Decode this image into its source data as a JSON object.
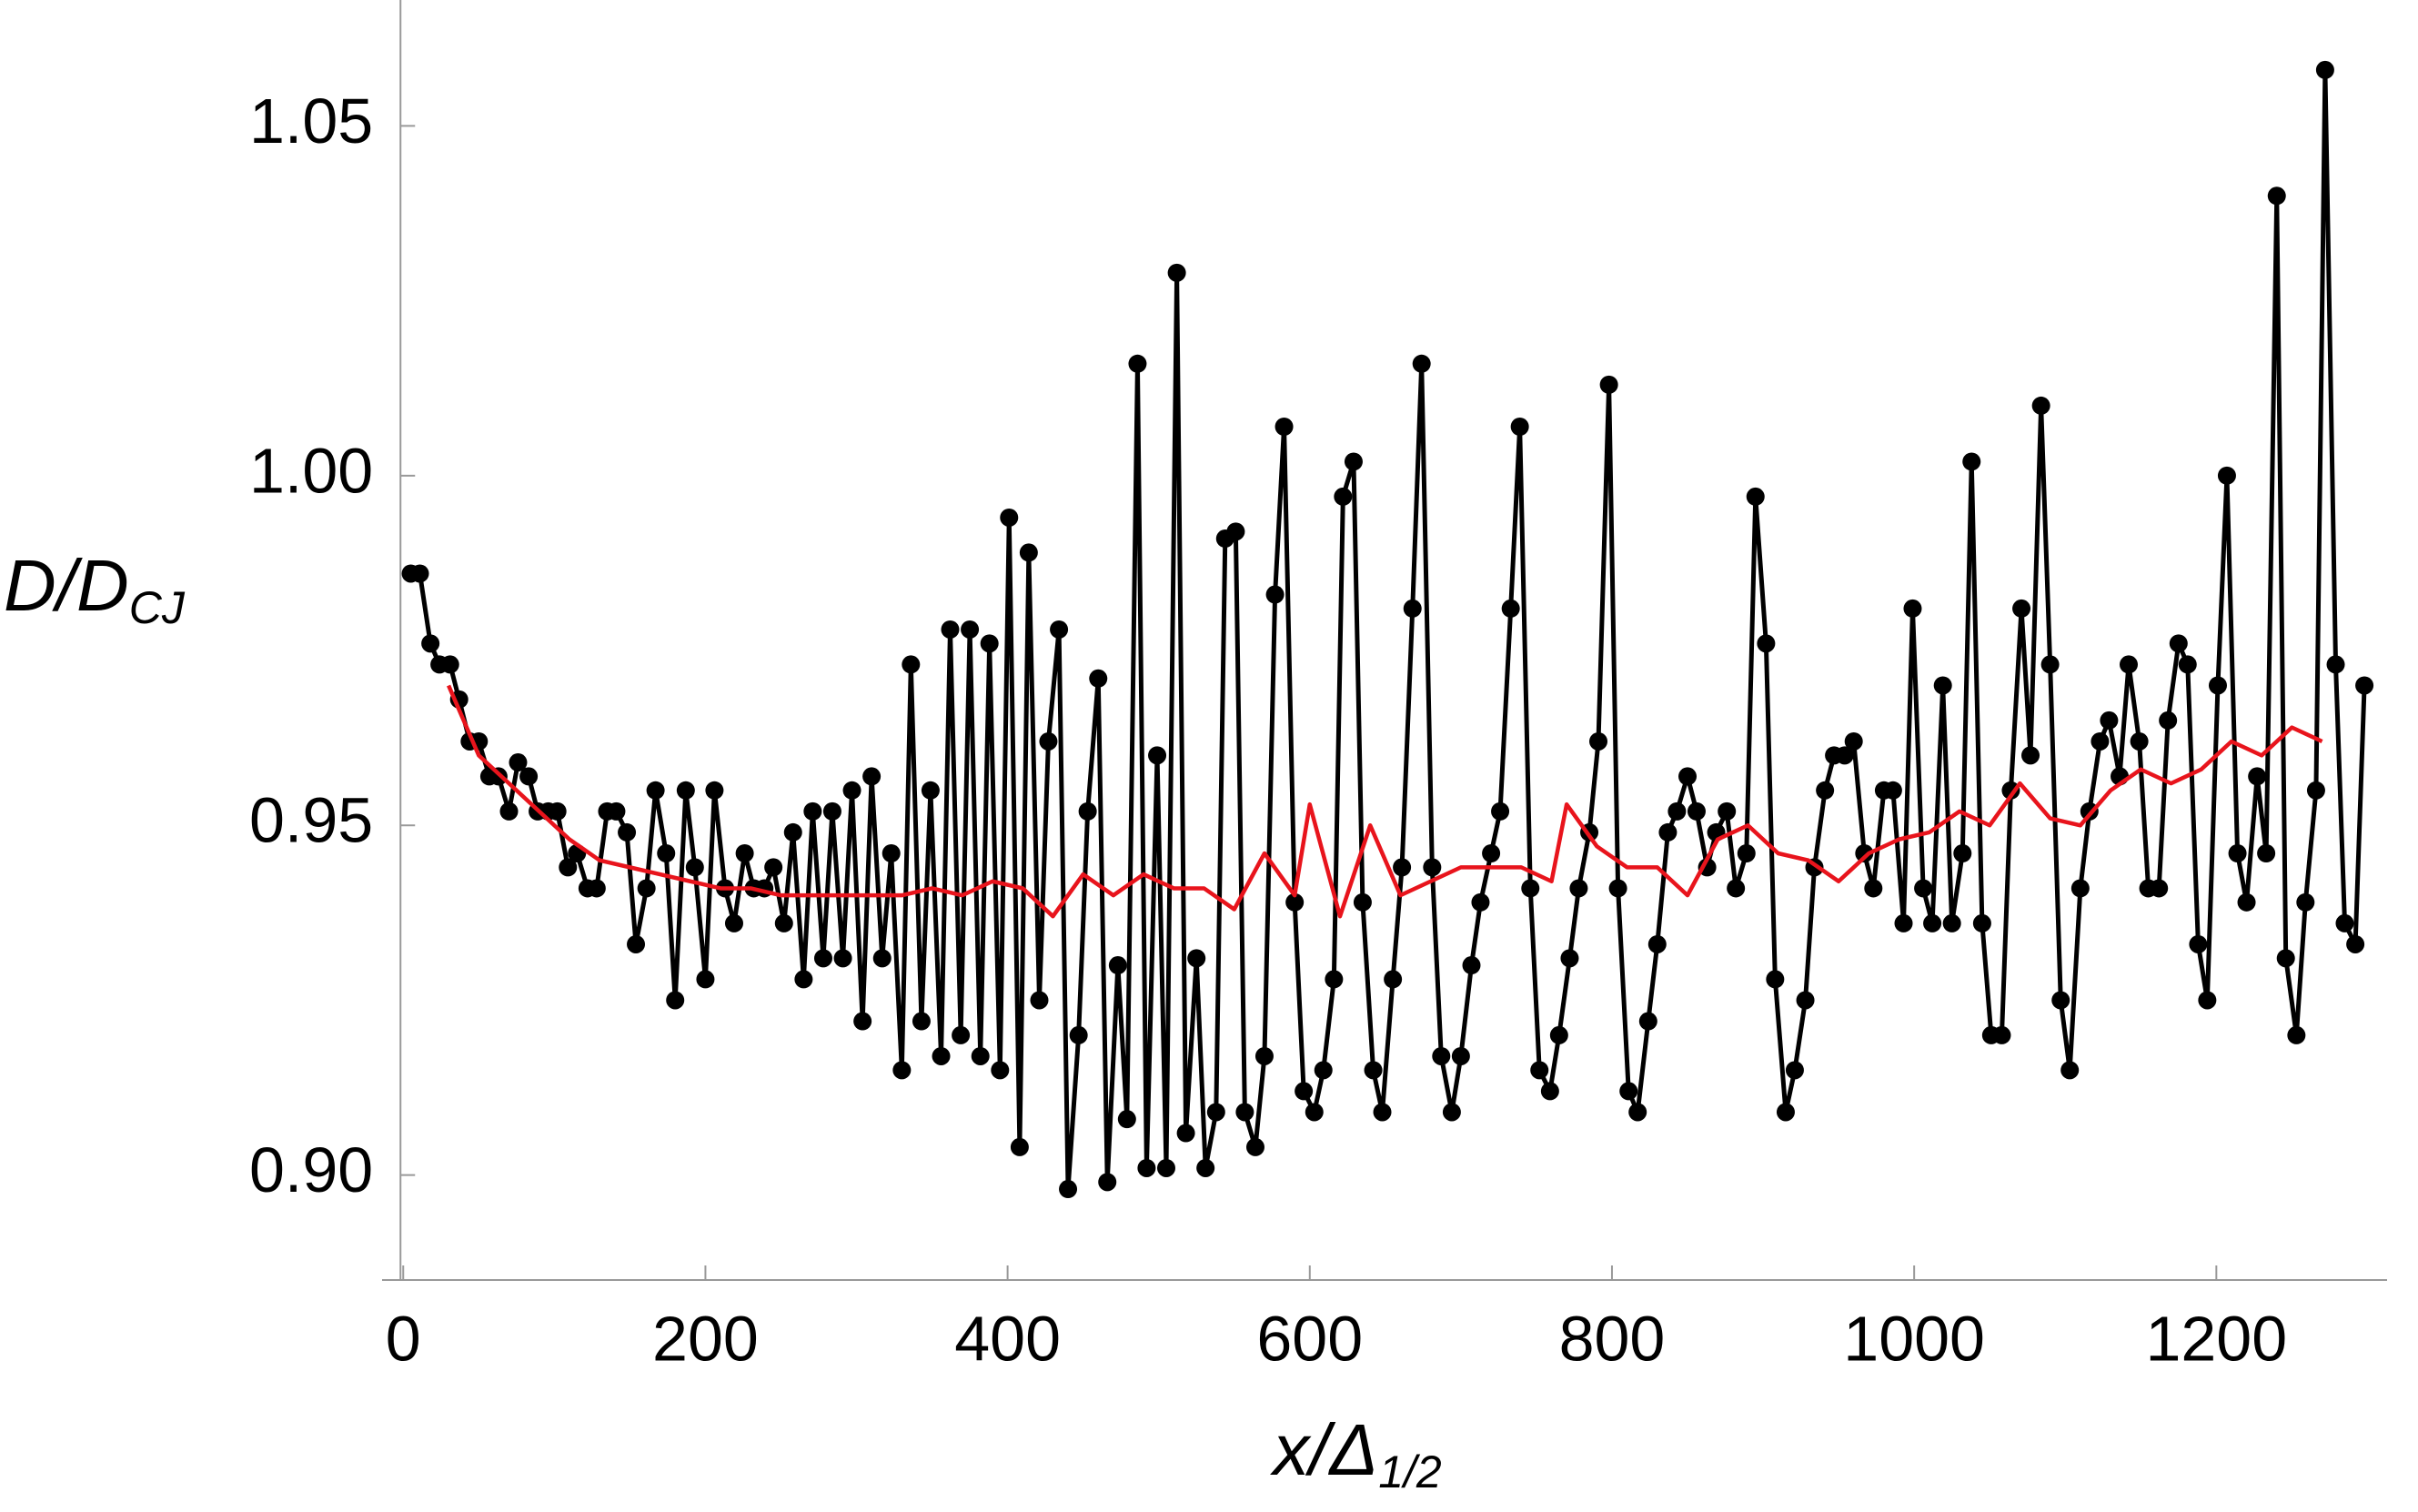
{
  "chart_data": {
    "type": "line",
    "xlabel": "x/Δ",
    "xlabel_sub": "1/2",
    "ylabel": "D/D",
    "ylabel_sub": "CJ",
    "xlim": [
      -14,
      1313
    ],
    "ylim": [
      0.885,
      1.068
    ],
    "xticks": [
      0,
      200,
      400,
      600,
      800,
      1000,
      1200
    ],
    "yticks": [
      {
        "value": 0.9,
        "label": "0.90"
      },
      0.95,
      {
        "value": 1.0,
        "label": "1.00"
      },
      1.05
    ],
    "series": [
      {
        "color": "#000000",
        "marker": true,
        "x": [
          5,
          11,
          18,
          24,
          31,
          37,
          44,
          50,
          57,
          63,
          70,
          76,
          83,
          89,
          96,
          102,
          109,
          115,
          122,
          128,
          135,
          141,
          148,
          154,
          161,
          167,
          174,
          180,
          187,
          193,
          200,
          206,
          213,
          219,
          226,
          232,
          239,
          245,
          252,
          258,
          265,
          271,
          278,
          284,
          291,
          297,
          304,
          310,
          317,
          323,
          330,
          336,
          343,
          349,
          356,
          362,
          369,
          375,
          382,
          388,
          395,
          401,
          408,
          414,
          421,
          427,
          434,
          440,
          447,
          453,
          460,
          466,
          473,
          479,
          486,
          492,
          499,
          505,
          512,
          518,
          525,
          531,
          538,
          544,
          551,
          557,
          564,
          570,
          577,
          583,
          590,
          596,
          603,
          609,
          616,
          622,
          629,
          635,
          642,
          648,
          655,
          661,
          668,
          674,
          681,
          687,
          694,
          700,
          707,
          713,
          720,
          726,
          733,
          739,
          746,
          752,
          759,
          765,
          772,
          778,
          785,
          791,
          798,
          804,
          811,
          817,
          824,
          830,
          837,
          843,
          850,
          856,
          863,
          869,
          876,
          882,
          889,
          895,
          902,
          908,
          915,
          921,
          928,
          934,
          941,
          947,
          954,
          960,
          967,
          973,
          980,
          986,
          993,
          999,
          1006,
          1012,
          1019,
          1025,
          1032,
          1038,
          1045,
          1051,
          1058,
          1064,
          1071,
          1077,
          1084,
          1090,
          1097,
          1103,
          1110,
          1116,
          1123,
          1129,
          1136,
          1142,
          1149,
          1155,
          1162,
          1168,
          1175,
          1181,
          1188,
          1194,
          1201,
          1207,
          1214,
          1220,
          1227,
          1233,
          1240,
          1246,
          1253,
          1259,
          1266,
          1272,
          1279,
          1285,
          1292,
          1298
        ],
        "values": [
          0.986,
          0.986,
          0.976,
          0.973,
          0.973,
          0.968,
          0.962,
          0.962,
          0.957,
          0.957,
          0.952,
          0.959,
          0.957,
          0.952,
          0.952,
          0.952,
          0.944,
          0.946,
          0.941,
          0.941,
          0.952,
          0.952,
          0.949,
          0.933,
          0.941,
          0.955,
          0.946,
          0.925,
          0.955,
          0.944,
          0.928,
          0.955,
          0.941,
          0.936,
          0.946,
          0.941,
          0.941,
          0.944,
          0.936,
          0.949,
          0.928,
          0.952,
          0.931,
          0.952,
          0.931,
          0.955,
          0.922,
          0.957,
          0.931,
          0.946,
          0.915,
          0.973,
          0.922,
          0.955,
          0.917,
          0.978,
          0.92,
          0.978,
          0.917,
          0.976,
          0.915,
          0.994,
          0.904,
          0.989,
          0.925,
          0.962,
          0.978,
          0.898,
          0.92,
          0.952,
          0.971,
          0.899,
          0.93,
          0.908,
          1.016,
          0.901,
          0.96,
          0.901,
          1.029,
          0.906,
          0.931,
          0.901,
          0.909,
          0.991,
          0.992,
          0.909,
          0.904,
          0.917,
          0.983,
          1.007,
          0.939,
          0.912,
          0.909,
          0.915,
          0.928,
          0.997,
          1.002,
          0.939,
          0.915,
          0.909,
          0.928,
          0.944,
          0.981,
          1.016,
          0.944,
          0.917,
          0.909,
          0.917,
          0.93,
          0.939,
          0.946,
          0.952,
          0.981,
          1.007,
          0.941,
          0.915,
          0.912,
          0.92,
          0.931,
          0.941,
          0.949,
          0.962,
          1.013,
          0.941,
          0.912,
          0.909,
          0.922,
          0.933,
          0.949,
          0.952,
          0.957,
          0.952,
          0.944,
          0.949,
          0.952,
          0.941,
          0.946,
          0.997,
          0.976,
          0.928,
          0.909,
          0.915,
          0.925,
          0.944,
          0.955,
          0.96,
          0.96,
          0.962,
          0.946,
          0.941,
          0.955,
          0.955,
          0.936,
          0.981,
          0.941,
          0.936,
          0.97,
          0.936,
          0.946,
          1.002,
          0.936,
          0.92,
          0.92,
          0.955,
          0.981,
          0.96,
          1.01,
          0.973,
          0.925,
          0.915,
          0.941,
          0.952,
          0.962,
          0.965,
          0.957,
          0.973,
          0.962,
          0.941,
          0.941,
          0.965,
          0.976,
          0.973,
          0.933,
          0.925,
          0.97,
          1.0,
          0.946,
          0.939,
          0.957,
          0.946,
          1.04,
          0.931,
          0.92,
          0.939,
          0.955,
          1.058,
          0.973,
          0.936,
          0.933,
          0.97
        ]
      },
      {
        "color": "#e8141c",
        "marker": false,
        "x": [
          30,
          50,
          70,
          90,
          110,
          130,
          150,
          170,
          190,
          210,
          230,
          250,
          270,
          290,
          310,
          330,
          350,
          370,
          390,
          410,
          430,
          450,
          470,
          490,
          510,
          530,
          550,
          570,
          590,
          600,
          620,
          640,
          660,
          680,
          700,
          720,
          740,
          760,
          770,
          790,
          810,
          830,
          850,
          870,
          890,
          910,
          930,
          950,
          970,
          990,
          1010,
          1030,
          1050,
          1070,
          1090,
          1110,
          1130,
          1150,
          1170,
          1190,
          1210,
          1230,
          1250,
          1270
        ],
        "values": [
          0.97,
          0.96,
          0.956,
          0.952,
          0.948,
          0.945,
          0.944,
          0.943,
          0.942,
          0.941,
          0.941,
          0.94,
          0.94,
          0.94,
          0.94,
          0.94,
          0.941,
          0.94,
          0.942,
          0.941,
          0.937,
          0.943,
          0.94,
          0.943,
          0.941,
          0.941,
          0.938,
          0.946,
          0.94,
          0.953,
          0.937,
          0.95,
          0.94,
          0.942,
          0.944,
          0.944,
          0.944,
          0.942,
          0.953,
          0.947,
          0.944,
          0.944,
          0.94,
          0.948,
          0.95,
          0.946,
          0.945,
          0.942,
          0.946,
          0.948,
          0.949,
          0.952,
          0.95,
          0.956,
          0.951,
          0.95,
          0.955,
          0.958,
          0.956,
          0.958,
          0.962,
          0.96,
          0.964,
          0.962
        ]
      }
    ]
  }
}
